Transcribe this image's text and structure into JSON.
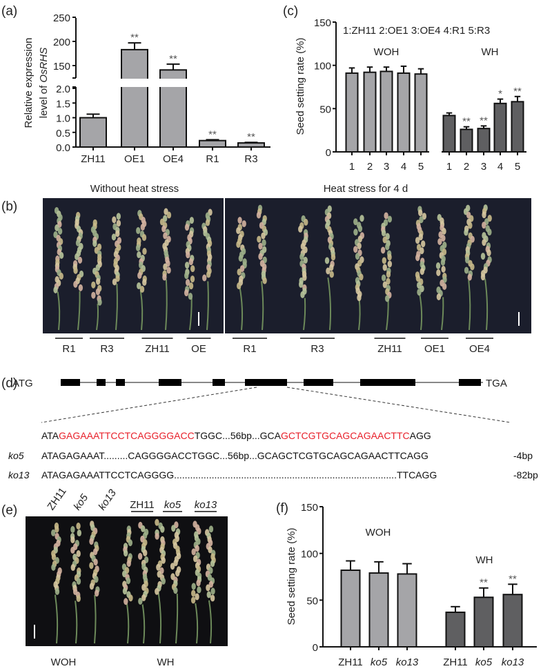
{
  "panel_labels": {
    "a": "(a)",
    "b": "(b)",
    "c": "(c)",
    "d": "(d)",
    "e": "(e)",
    "f": "(f)"
  },
  "colors": {
    "light_bar": "#a5a5a8",
    "dark_bar": "#5f5f61",
    "highlight": "#e8202a",
    "photo_bg": "#1b1e2c"
  },
  "chart_data": [
    {
      "id": "a",
      "type": "bar",
      "title": "",
      "ylabel_line1": "Relative  expression",
      "ylabel_line2_prefix": "level of ",
      "ylabel_line2_gene": "OsRHS",
      "categories": [
        "ZH11",
        "OE1",
        "OE4",
        "R1",
        "R3"
      ],
      "values": [
        1.0,
        183,
        141,
        0.22,
        0.14
      ],
      "errors": [
        0.12,
        14,
        12,
        0.03,
        0.02
      ],
      "significance": [
        "",
        "**",
        "**",
        "**",
        "**"
      ],
      "broken_axis": true,
      "ylim_lower": [
        0,
        2.0
      ],
      "ylim_upper": [
        125,
        250
      ],
      "yticks_lower": [
        "0.0",
        "0.5",
        "1.0",
        "1.5",
        "2.0"
      ],
      "yticks_upper": [
        "150",
        "200",
        "250"
      ]
    },
    {
      "id": "c",
      "type": "bar",
      "title": "",
      "ylabel": "Seed setting rate (%)",
      "legend_note": "1:ZH11  2:OE1  3:OE4  4:R1  5:R3",
      "groups": [
        {
          "name": "WOH",
          "categories": [
            "1",
            "2",
            "3",
            "4",
            "5"
          ],
          "values": [
            91,
            92,
            93,
            91,
            90
          ],
          "errors": [
            6,
            6,
            5,
            8,
            6
          ],
          "significance": [
            "",
            "",
            "",
            "",
            ""
          ]
        },
        {
          "name": "WH",
          "categories": [
            "1",
            "2",
            "3",
            "4",
            "5"
          ],
          "values": [
            42,
            26,
            27,
            56,
            58
          ],
          "errors": [
            3,
            3,
            3,
            5,
            6
          ],
          "significance": [
            "",
            "**",
            "**",
            "*",
            "**"
          ]
        }
      ],
      "ylim": [
        0,
        150
      ],
      "yticks": [
        "0",
        "50",
        "100",
        "150"
      ]
    },
    {
      "id": "f",
      "type": "bar",
      "title": "",
      "ylabel": "Seed setting rate (%)",
      "groups": [
        {
          "name": "WOH",
          "categories": [
            "ZH11",
            "ko5",
            "ko13"
          ],
          "values": [
            82,
            79,
            78
          ],
          "errors": [
            10,
            12,
            11
          ],
          "significance": [
            "",
            "",
            ""
          ]
        },
        {
          "name": "WH",
          "categories": [
            "ZH11",
            "ko5",
            "ko13"
          ],
          "values": [
            37,
            53,
            56
          ],
          "errors": [
            6,
            10,
            11
          ],
          "significance": [
            "",
            "**",
            "**"
          ]
        }
      ],
      "ylim": [
        0,
        150
      ],
      "yticks": [
        "0",
        "50",
        "100",
        "150"
      ]
    }
  ],
  "panel_b": {
    "title_left": "Without heat stress",
    "title_right": "Heat stress for 4 d",
    "labels": [
      "R1",
      "R3",
      "ZH11",
      "OE",
      "R1",
      "R3",
      "ZH11",
      "OE1",
      "OE4"
    ]
  },
  "panel_d": {
    "start": "ATG",
    "stop": "TGA",
    "wt": [
      {
        "text": "ATA",
        "red": false
      },
      {
        "text": "GAGAAATTCCTCAGGGGACC",
        "red": true
      },
      {
        "text": "TGGC...56bp...GCA",
        "red": false
      },
      {
        "text": "GCTCGTGCAGCAGAACTTC",
        "red": true
      },
      {
        "text": "AGG",
        "red": false
      }
    ],
    "mutants": [
      {
        "name": "ko5",
        "seq": "ATAGAGAAAT.........CAGGGGACCTGGC...56bp...GCAGCTCGTGCAGCAGAACTTCAGG",
        "change": "-4bp"
      },
      {
        "name": "ko13",
        "seq": "ATAGAGAAATTCCTCAGGGG...................................................................................TTCAGG",
        "change": "-82bp"
      }
    ]
  },
  "panel_e": {
    "top_rotated": [
      "ZH11",
      "ko5",
      "ko13"
    ],
    "top_underlined": [
      "ZH11",
      "ko5",
      "ko13"
    ],
    "bottom": [
      "WOH",
      "WH"
    ]
  }
}
